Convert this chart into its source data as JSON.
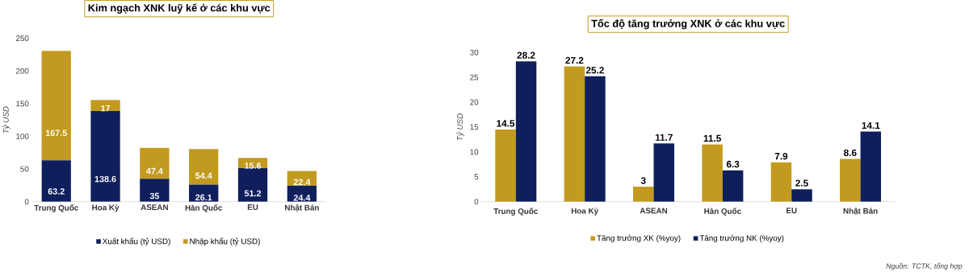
{
  "chart_data": [
    {
      "type": "bar",
      "stacked": true,
      "title": "Kim ngạch XNK luỹ kế ở các khu vực",
      "ylabel": "Tỷ USD",
      "categories": [
        "Trung Quốc",
        "Hoa Kỳ",
        "ASEAN",
        "Hàn Quốc",
        "EU",
        "Nhật Bản"
      ],
      "series": [
        {
          "name": "Xuất khẩu (tỷ USD)",
          "color": "#0f1f5c",
          "values": [
            63.2,
            138.6,
            35,
            26.1,
            51.2,
            24.4
          ]
        },
        {
          "name": "Nhập khẩu (tỷ USD)",
          "color": "#c29a1f",
          "values": [
            167.5,
            17,
            47.4,
            54.4,
            15.6,
            22.4
          ]
        }
      ],
      "ylim": [
        0,
        250
      ],
      "yticks": [
        0,
        50,
        100,
        150,
        200,
        250
      ],
      "data_labels": true,
      "legend": "bottom"
    },
    {
      "type": "bar",
      "title": "Tốc độ tăng trưởng XNK ở các khu vực",
      "ylabel": "Tỷ USD",
      "categories": [
        "Trung Quốc",
        "Hoa Kỳ",
        "ASEAN",
        "Hàn Quốc",
        "EU",
        "Nhật Bản"
      ],
      "series": [
        {
          "name": "Tăng trưởng XK (%yoy)",
          "color": "#c29a1f",
          "values": [
            14.5,
            27.2,
            3,
            11.5,
            7.9,
            8.6
          ]
        },
        {
          "name": "Tăng trưởng NK (%yoy)",
          "color": "#0f1f5c",
          "values": [
            28.2,
            25.2,
            11.7,
            6.3,
            2.5,
            14.1
          ]
        }
      ],
      "ylim": [
        0,
        30
      ],
      "yticks": [
        0,
        5,
        10,
        15,
        20,
        25,
        30
      ],
      "data_labels": true,
      "legend": "bottom",
      "annotations": [
        "Nguồn: TCTK, tổng hợp"
      ]
    }
  ]
}
